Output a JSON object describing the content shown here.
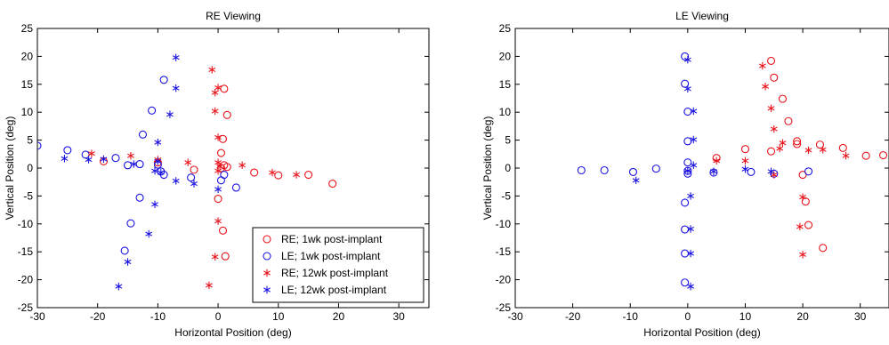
{
  "colors": {
    "re": "#e8141c",
    "le": "#1c14e0",
    "axis": "#000000"
  },
  "chart_data": [
    {
      "type": "scatter",
      "title": "RE Viewing",
      "xlabel": "Horizontal Position (deg)",
      "ylabel": "Vertical Position (deg)",
      "xlim": [
        -30,
        35
      ],
      "ylim": [
        -25,
        25
      ],
      "xticks": [
        -30,
        -20,
        -10,
        0,
        10,
        20,
        30
      ],
      "yticks": [
        -25,
        -20,
        -15,
        -10,
        -5,
        0,
        5,
        10,
        15,
        20,
        25
      ],
      "legend_position": "bottom-right",
      "series": [
        {
          "name": "RE; 1wk post-implant",
          "marker": "circle",
          "color_key": "re",
          "points": [
            [
              1,
              14.2
            ],
            [
              1.5,
              9.5
            ],
            [
              0.8,
              5.2
            ],
            [
              0.5,
              2.7
            ],
            [
              1,
              0.5
            ],
            [
              0.5,
              0
            ],
            [
              1.5,
              0.2
            ],
            [
              -4,
              -0.3
            ],
            [
              -10,
              1
            ],
            [
              -19,
              1.2
            ],
            [
              6,
              -0.8
            ],
            [
              10,
              -1.3
            ],
            [
              15,
              -1.2
            ],
            [
              19,
              -2.8
            ],
            [
              0,
              -5.5
            ],
            [
              0.8,
              -11.2
            ],
            [
              1.2,
              -15.8
            ]
          ]
        },
        {
          "name": "LE; 1wk post-implant",
          "marker": "circle",
          "color_key": "le",
          "points": [
            [
              -30,
              4
            ],
            [
              -25,
              3.2
            ],
            [
              -22,
              2.4
            ],
            [
              -17,
              1.8
            ],
            [
              -13,
              0.7
            ],
            [
              -15,
              0.5
            ],
            [
              -9,
              15.8
            ],
            [
              -11,
              10.3
            ],
            [
              -12.5,
              6
            ],
            [
              -10,
              0.6
            ],
            [
              -9.5,
              -0.6
            ],
            [
              -9,
              -1.2
            ],
            [
              -4.5,
              -1.7
            ],
            [
              -13,
              -5.3
            ],
            [
              -14.5,
              -9.9
            ],
            [
              -15.5,
              -14.8
            ],
            [
              3,
              -3.5
            ],
            [
              0.5,
              -2.2
            ],
            [
              1,
              -1.2
            ]
          ]
        },
        {
          "name": "RE; 12wk post-implant",
          "marker": "asterisk",
          "color_key": "re",
          "points": [
            [
              -1,
              17.6
            ],
            [
              -0.5,
              13.5
            ],
            [
              0,
              14.4
            ],
            [
              -0.5,
              10.2
            ],
            [
              0,
              5.5
            ],
            [
              0,
              1
            ],
            [
              0.3,
              0.3
            ],
            [
              0,
              -0.5
            ],
            [
              -5,
              1
            ],
            [
              -10,
              1.5
            ],
            [
              -14.5,
              2.2
            ],
            [
              -21,
              2.6
            ],
            [
              4,
              0.5
            ],
            [
              9,
              -0.8
            ],
            [
              13,
              -1.2
            ],
            [
              0,
              -9.5
            ],
            [
              -0.5,
              -15.9
            ],
            [
              -1.5,
              -21
            ]
          ]
        },
        {
          "name": "LE; 12wk post-implant",
          "marker": "asterisk",
          "color_key": "le",
          "points": [
            [
              -7,
              19.8
            ],
            [
              -7,
              14.3
            ],
            [
              -8,
              9.6
            ],
            [
              -10,
              4.6
            ],
            [
              -10,
              1.2
            ],
            [
              -10.5,
              -0.5
            ],
            [
              -9.5,
              -0.8
            ],
            [
              -14,
              0.7
            ],
            [
              -19,
              1.6
            ],
            [
              -21.5,
              1.5
            ],
            [
              -25.5,
              1.7
            ],
            [
              -7,
              -2.3
            ],
            [
              -4,
              -2.8
            ],
            [
              0,
              -3.8
            ],
            [
              -10.5,
              -6.5
            ],
            [
              -11.5,
              -11.8
            ],
            [
              -15,
              -16.8
            ],
            [
              -16.5,
              -21.2
            ]
          ]
        }
      ]
    },
    {
      "type": "scatter",
      "title": "LE Viewing",
      "xlabel": "Horizontal Position (deg)",
      "ylabel": "Vertical Position (deg)",
      "xlim": [
        -30,
        35
      ],
      "ylim": [
        -25,
        25
      ],
      "xticks": [
        -30,
        -20,
        -10,
        0,
        10,
        20,
        30
      ],
      "yticks": [
        -25,
        -20,
        -15,
        -10,
        -5,
        0,
        5,
        10,
        15,
        20,
        25
      ],
      "series": [
        {
          "name": "RE; 1wk post-implant",
          "marker": "circle",
          "color_key": "re",
          "points": [
            [
              14.5,
              19.2
            ],
            [
              15,
              16.2
            ],
            [
              16.5,
              12.4
            ],
            [
              17.5,
              8.4
            ],
            [
              19,
              4.8
            ],
            [
              19,
              4.3
            ],
            [
              20,
              -1.2
            ],
            [
              20.5,
              -6
            ],
            [
              21,
              -10.2
            ],
            [
              23.5,
              -14.3
            ],
            [
              14.5,
              3
            ],
            [
              10,
              3.4
            ],
            [
              5,
              1.8
            ],
            [
              23,
              4.2
            ],
            [
              27,
              3.6
            ],
            [
              31,
              2.2
            ],
            [
              34,
              2.3
            ]
          ]
        },
        {
          "name": "LE; 1wk post-implant",
          "marker": "circle",
          "color_key": "le",
          "points": [
            [
              -0.5,
              20
            ],
            [
              -0.5,
              15.1
            ],
            [
              0,
              10.1
            ],
            [
              0,
              4.8
            ],
            [
              0,
              1
            ],
            [
              0,
              -0.5
            ],
            [
              0,
              -1
            ],
            [
              -0.5,
              -6.2
            ],
            [
              -0.5,
              -11
            ],
            [
              -0.5,
              -15.3
            ],
            [
              -0.5,
              -20.5
            ],
            [
              -5.5,
              -0.1
            ],
            [
              -9.5,
              -0.7
            ],
            [
              -14.5,
              -0.4
            ],
            [
              -18.5,
              -0.4
            ],
            [
              4.5,
              -0.8
            ],
            [
              11,
              -0.7
            ],
            [
              15,
              -1
            ],
            [
              21,
              -0.6
            ]
          ]
        },
        {
          "name": "RE; 12wk post-implant",
          "marker": "asterisk",
          "color_key": "re",
          "points": [
            [
              13,
              18.3
            ],
            [
              13.5,
              14.6
            ],
            [
              14.5,
              10.7
            ],
            [
              15,
              7
            ],
            [
              16.5,
              4.5
            ],
            [
              16,
              3.5
            ],
            [
              15,
              -1.2
            ],
            [
              20,
              -5.2
            ],
            [
              19.5,
              -10.5
            ],
            [
              20,
              -15.5
            ],
            [
              10,
              1.3
            ],
            [
              5,
              1.3
            ],
            [
              21,
              3.2
            ],
            [
              23.5,
              3.3
            ],
            [
              27.5,
              2.2
            ]
          ]
        },
        {
          "name": "LE; 12wk post-implant",
          "marker": "asterisk",
          "color_key": "le",
          "points": [
            [
              0,
              19.4
            ],
            [
              0,
              14.2
            ],
            [
              1,
              10.2
            ],
            [
              1,
              5.1
            ],
            [
              1,
              0.5
            ],
            [
              0,
              -0.5
            ],
            [
              0.5,
              -5
            ],
            [
              0.5,
              -10.9
            ],
            [
              0.5,
              -15.3
            ],
            [
              0.5,
              -21.2
            ],
            [
              -9,
              -2.2
            ],
            [
              4.5,
              -0.6
            ],
            [
              10,
              -0.2
            ],
            [
              14.5,
              -0.6
            ]
          ]
        }
      ]
    }
  ]
}
